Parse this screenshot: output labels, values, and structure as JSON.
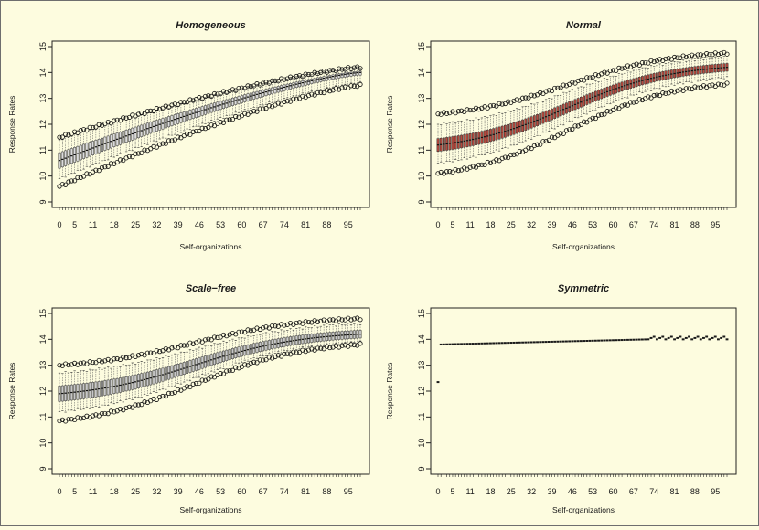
{
  "figure": {
    "background": "#fdfcdf",
    "frame_color": "#6e6e6e"
  },
  "chart_data": [
    {
      "type": "boxplot",
      "title": "Homogeneous",
      "xlabel": "Self-organizations",
      "ylabel": "Response Rates",
      "ylim": [
        9,
        15
      ],
      "yticks": [
        9,
        10,
        11,
        12,
        13,
        14,
        15
      ],
      "x_tick_labels": [
        "0",
        "5",
        "11",
        "18",
        "25",
        "32",
        "39",
        "46",
        "53",
        "60",
        "67",
        "74",
        "81",
        "88",
        "95"
      ],
      "x_tick_positions": [
        0,
        5,
        11,
        18,
        25,
        32,
        39,
        46,
        53,
        60,
        67,
        74,
        81,
        88,
        95
      ],
      "n_boxes": 100,
      "box_fill": "#dcdcdc",
      "shape": "concave",
      "median": [
        10.6,
        14.0
      ],
      "q1": [
        10.3,
        13.9
      ],
      "q3": [
        10.9,
        14.05
      ],
      "whisker_low": [
        9.9,
        13.6
      ],
      "whisker_high": [
        11.4,
        14.2
      ],
      "outlier_low": [
        9.6,
        13.5
      ],
      "outlier_high": [
        11.5,
        14.2
      ]
    },
    {
      "type": "boxplot",
      "title": "Normal",
      "xlabel": "Self-organizations",
      "ylabel": "Response Rates",
      "ylim": [
        9,
        15
      ],
      "yticks": [
        9,
        10,
        11,
        12,
        13,
        14,
        15
      ],
      "x_tick_labels": [
        "0",
        "5",
        "11",
        "18",
        "25",
        "32",
        "39",
        "46",
        "53",
        "60",
        "67",
        "74",
        "81",
        "88",
        "95"
      ],
      "x_tick_positions": [
        0,
        5,
        11,
        18,
        25,
        32,
        39,
        46,
        53,
        60,
        67,
        74,
        81,
        88,
        95
      ],
      "n_boxes": 100,
      "box_fill": "#b5493d",
      "shape": "sigmoid",
      "median": [
        11.2,
        14.2
      ],
      "q1": [
        10.95,
        14.05
      ],
      "q3": [
        11.45,
        14.35
      ],
      "whisker_low": [
        10.5,
        13.8
      ],
      "whisker_high": [
        12.0,
        14.6
      ],
      "outlier_low": [
        10.1,
        13.55
      ],
      "outlier_high": [
        12.4,
        14.75
      ]
    },
    {
      "type": "boxplot",
      "title": "Scale−free",
      "xlabel": "Self-organizations",
      "ylabel": "Response Rates",
      "ylim": [
        9,
        15
      ],
      "yticks": [
        9,
        10,
        11,
        12,
        13,
        14,
        15
      ],
      "x_tick_labels": [
        "0",
        "5",
        "11",
        "18",
        "25",
        "32",
        "39",
        "46",
        "53",
        "60",
        "67",
        "74",
        "81",
        "88",
        "95"
      ],
      "x_tick_positions": [
        0,
        5,
        11,
        18,
        25,
        32,
        39,
        46,
        53,
        60,
        67,
        74,
        81,
        88,
        95
      ],
      "n_boxes": 100,
      "box_fill": "#c8c8c8",
      "shape": "sigmoid",
      "median": [
        11.9,
        14.2
      ],
      "q1": [
        11.6,
        14.05
      ],
      "q3": [
        12.2,
        14.35
      ],
      "whisker_low": [
        11.2,
        13.9
      ],
      "whisker_high": [
        12.7,
        14.6
      ],
      "outlier_low": [
        10.85,
        13.8
      ],
      "outlier_high": [
        13.0,
        14.8
      ]
    },
    {
      "type": "boxplot",
      "title": "Symmetric",
      "xlabel": "Self-organizations",
      "ylabel": "Response Rates",
      "ylim": [
        9,
        15
      ],
      "yticks": [
        9,
        10,
        11,
        12,
        13,
        14,
        15
      ],
      "x_tick_labels": [
        "0",
        "5",
        "11",
        "18",
        "25",
        "32",
        "39",
        "46",
        "53",
        "60",
        "67",
        "74",
        "81",
        "88",
        "95"
      ],
      "x_tick_positions": [
        0,
        5,
        11,
        18,
        25,
        32,
        39,
        46,
        53,
        60,
        67,
        74,
        81,
        88,
        95
      ],
      "n_boxes": 100,
      "box_fill": "#1a1a1a",
      "shape": "flat",
      "first_value": 12.35,
      "plateau": [
        13.8,
        14.0
      ],
      "tail_start": 72,
      "tail_value": 14.05
    }
  ]
}
